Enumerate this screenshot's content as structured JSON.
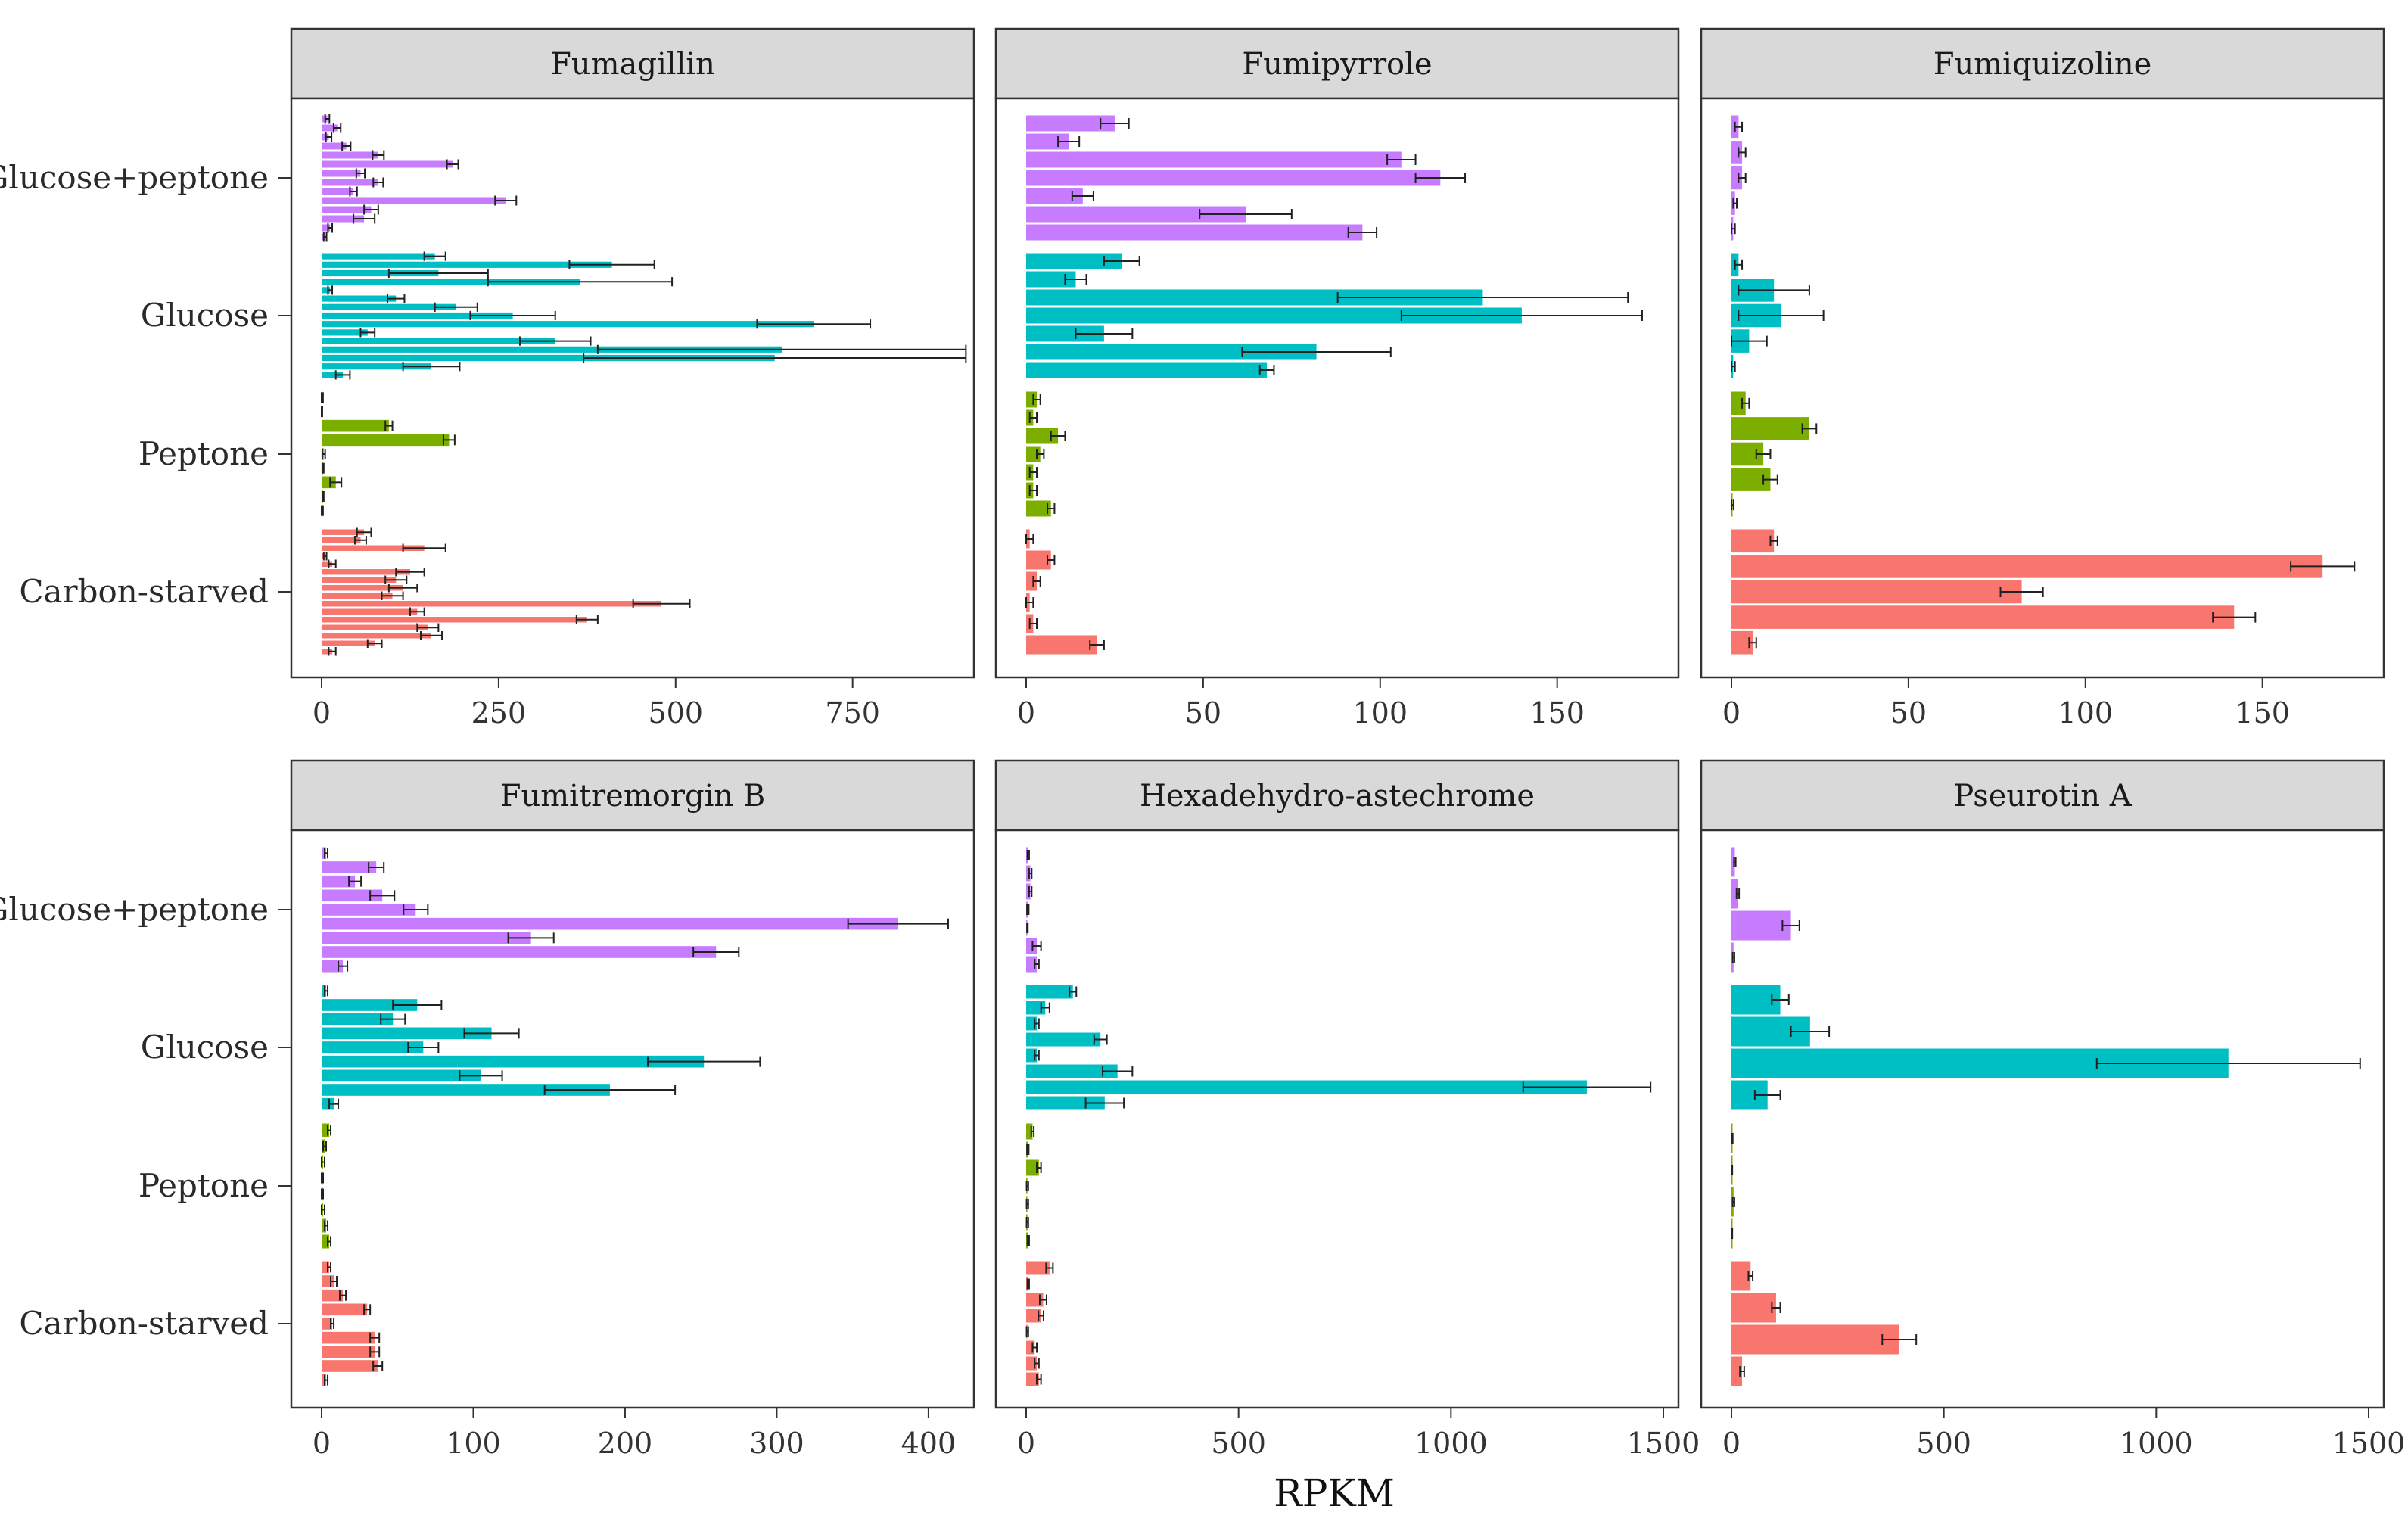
{
  "colors": {
    "Glucose+peptone": "#c77cff",
    "Glucose": "#00bfc4",
    "Peptone": "#7cae00",
    "Carbon-starved": "#f8766d",
    "strip_fill": "#d9d9d9",
    "frame": "#333333",
    "error_bar": "#222222"
  },
  "chart_data": {
    "type": "bar",
    "orientation": "horizontal",
    "xlabel": "RPKM",
    "conditions": [
      "Glucose+peptone",
      "Glucose",
      "Peptone",
      "Carbon-starved"
    ],
    "panels": [
      {
        "title": "Fumagillin",
        "xlim": [
          0,
          900
        ],
        "xticks": [
          0,
          250,
          500,
          750
        ],
        "groups": [
          {
            "condition": "Glucose+peptone",
            "values": [
              8,
              22,
              10,
              35,
              80,
              185,
              55,
              80,
              45,
              260,
              70,
              60,
              12,
              5
            ],
            "errors": [
              3,
              5,
              4,
              6,
              8,
              8,
              6,
              7,
              5,
              15,
              10,
              15,
              3,
              2
            ]
          },
          {
            "condition": "Glucose",
            "values": [
              160,
              410,
              165,
              365,
              12,
              105,
              190,
              270,
              695,
              65,
              330,
              650,
              640,
              155,
              30
            ],
            "errors": [
              15,
              60,
              70,
              130,
              3,
              12,
              30,
              60,
              80,
              10,
              50,
              260,
              270,
              40,
              10
            ]
          },
          {
            "condition": "Peptone",
            "values": [
              1,
              0,
              95,
              180,
              3,
              2,
              20,
              2,
              1
            ],
            "errors": [
              1,
              1,
              5,
              8,
              2,
              1,
              8,
              1,
              1
            ]
          },
          {
            "condition": "Carbon-starved",
            "values": [
              60,
              55,
              145,
              5,
              15,
              125,
              105,
              115,
              100,
              480,
              135,
              375,
              150,
              155,
              75,
              15
            ],
            "errors": [
              10,
              8,
              30,
              2,
              5,
              20,
              15,
              20,
              15,
              40,
              10,
              15,
              15,
              15,
              10,
              5
            ]
          }
        ]
      },
      {
        "title": "Fumipyrrole",
        "xlim": [
          0,
          180
        ],
        "xticks": [
          0,
          50,
          100,
          150
        ],
        "groups": [
          {
            "condition": "Glucose+peptone",
            "values": [
              25,
              12,
              106,
              117,
              16,
              62,
              95
            ],
            "errors": [
              4,
              3,
              4,
              7,
              3,
              13,
              4
            ]
          },
          {
            "condition": "Glucose",
            "values": [
              27,
              14,
              129,
              140,
              22,
              82,
              68
            ],
            "errors": [
              5,
              3,
              41,
              34,
              8,
              21,
              2
            ]
          },
          {
            "condition": "Peptone",
            "values": [
              3,
              2,
              9,
              4,
              2,
              2,
              7
            ],
            "errors": [
              1,
              1,
              2,
              1,
              1,
              1,
              1
            ]
          },
          {
            "condition": "Carbon-starved",
            "values": [
              1,
              7,
              3,
              1,
              2,
              20
            ],
            "errors": [
              1,
              1,
              1,
              1,
              1,
              2
            ]
          }
        ]
      },
      {
        "title": "Fumiquizoline",
        "xlim": [
          0,
          180
        ],
        "xticks": [
          0,
          50,
          100,
          150
        ],
        "groups": [
          {
            "condition": "Glucose+peptone",
            "values": [
              2,
              3,
              3,
              1,
              0.5
            ],
            "errors": [
              1,
              1,
              1,
              0.5,
              0.5
            ]
          },
          {
            "condition": "Glucose",
            "values": [
              2,
              12,
              14,
              5,
              0.5
            ],
            "errors": [
              1,
              10,
              12,
              5,
              0.5
            ]
          },
          {
            "condition": "Peptone",
            "values": [
              4,
              22,
              9,
              11,
              0.3
            ],
            "errors": [
              1,
              2,
              2,
              2,
              0.3
            ]
          },
          {
            "condition": "Carbon-starved",
            "values": [
              12,
              167,
              82,
              142,
              6
            ],
            "errors": [
              1,
              9,
              6,
              6,
              1
            ]
          }
        ]
      },
      {
        "title": "Fumitremorgin B",
        "xlim": [
          0,
          420
        ],
        "xticks": [
          0,
          100,
          200,
          300,
          400
        ],
        "groups": [
          {
            "condition": "Glucose+peptone",
            "values": [
              3,
              36,
              22,
              40,
              62,
              380,
              138,
              260,
              14
            ],
            "errors": [
              1,
              5,
              4,
              8,
              8,
              33,
              15,
              15,
              3
            ]
          },
          {
            "condition": "Glucose",
            "values": [
              3,
              63,
              47,
              112,
              67,
              252,
              105,
              190,
              8
            ],
            "errors": [
              1,
              16,
              8,
              18,
              10,
              37,
              14,
              43,
              3
            ]
          },
          {
            "condition": "Peptone",
            "values": [
              5,
              2,
              1,
              0.5,
              0.5,
              1,
              3,
              5
            ],
            "errors": [
              1,
              1,
              1,
              0.5,
              0.5,
              1,
              1,
              1
            ]
          },
          {
            "condition": "Carbon-starved",
            "values": [
              5,
              8,
              14,
              30,
              7,
              35,
              35,
              37,
              3
            ],
            "errors": [
              1,
              2,
              2,
              2,
              1,
              3,
              3,
              3,
              1
            ]
          }
        ]
      },
      {
        "title": "Hexadehydro-astechrome",
        "xlim": [
          0,
          1500
        ],
        "xticks": [
          0,
          500,
          1000,
          1500
        ],
        "groups": [
          {
            "condition": "Glucose+peptone",
            "values": [
              5,
              10,
              10,
              4,
              3,
              25,
              25
            ],
            "errors": [
              2,
              3,
              3,
              2,
              1,
              10,
              5
            ]
          },
          {
            "condition": "Glucose",
            "values": [
              110,
              45,
              25,
              175,
              25,
              215,
              1320,
              185
            ],
            "errors": [
              8,
              10,
              5,
              15,
              5,
              35,
              150,
              45
            ]
          },
          {
            "condition": "Peptone",
            "values": [
              15,
              4,
              30,
              3,
              3,
              3,
              5
            ],
            "errors": [
              3,
              2,
              5,
              2,
              2,
              2,
              2
            ]
          },
          {
            "condition": "Carbon-starved",
            "values": [
              55,
              5,
              40,
              35,
              3,
              20,
              25,
              30
            ],
            "errors": [
              8,
              2,
              8,
              6,
              2,
              5,
              5,
              5
            ]
          }
        ]
      },
      {
        "title": "Pseurotin A",
        "xlim": [
          0,
          1500
        ],
        "xticks": [
          0,
          500,
          1000,
          1500
        ],
        "groups": [
          {
            "condition": "Glucose+peptone",
            "values": [
              8,
              15,
              140,
              5
            ],
            "errors": [
              2,
              3,
              20,
              2
            ]
          },
          {
            "condition": "Glucose",
            "values": [
              115,
              185,
              1170,
              85
            ],
            "errors": [
              20,
              45,
              310,
              30
            ]
          },
          {
            "condition": "Peptone",
            "values": [
              2,
              1,
              5,
              1
            ],
            "errors": [
              1,
              1,
              2,
              1
            ]
          },
          {
            "condition": "Carbon-starved",
            "values": [
              45,
              105,
              395,
              25
            ],
            "errors": [
              5,
              10,
              40,
              5
            ]
          }
        ]
      }
    ]
  }
}
